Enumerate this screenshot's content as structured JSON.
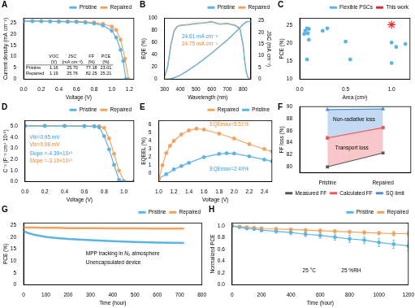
{
  "chart_data": [
    {
      "title": "A",
      "type": "line",
      "x_label": "Voltage (V)",
      "y_label": "Current density (mA cm⁻²)",
      "xlim": [
        0,
        1.25
      ],
      "xticks": [
        {
          "value": 0,
          "label": "0.0"
        },
        0.2,
        0.4,
        0.6,
        0.8,
        {
          "value": 1,
          "label": "1.0"
        },
        1.2
      ],
      "ylim": [
        0,
        27
      ],
      "yticks": [
        0,
        5,
        10,
        15,
        20,
        25
      ],
      "grid": false,
      "legend": "top",
      "series": [
        {
          "name": "Pristine",
          "color": "#5ab4e5",
          "marker": "circle",
          "line_style": "solid",
          "x": [
            0,
            0.1,
            0.2,
            0.3,
            0.4,
            0.5,
            0.6,
            0.7,
            0.8,
            0.9,
            1.0,
            1.05,
            1.1,
            1.13,
            1.16
          ],
          "values": [
            25.7,
            25.68,
            25.66,
            25.6,
            25.5,
            25.4,
            25.3,
            25.1,
            24.7,
            23.8,
            21.5,
            18.5,
            13,
            8,
            0
          ]
        },
        {
          "name": "Repaired",
          "color": "#f5a35c",
          "marker": "circle",
          "line_style": "solid",
          "x": [
            0,
            0.1,
            0.2,
            0.3,
            0.4,
            0.5,
            0.6,
            0.7,
            0.8,
            0.9,
            1.0,
            1.05,
            1.1,
            1.15,
            1.19
          ],
          "values": [
            25.76,
            25.75,
            25.74,
            25.72,
            25.7,
            25.65,
            25.6,
            25.4,
            25.1,
            24.5,
            23.3,
            21.8,
            17.5,
            9,
            0
          ]
        }
      ],
      "table": {
        "columns": [
          "VOC (V)",
          "JSC (mA cm⁻²)",
          "FF (%)",
          "PCE (%)"
        ],
        "rows": [
          {
            "name": "Pristine",
            "cells": [
              "1.16",
              "25.70",
              "77.18",
              "23.01"
            ]
          },
          {
            "name": "Repaired",
            "cells": [
              "1.19",
              "25.76",
              "82.25",
              "25.21"
            ]
          }
        ]
      }
    },
    {
      "title": "B",
      "type": "line",
      "x_label": "Wavelength (nm)",
      "y_label": "EQE (%)",
      "y2_label": "JSC (mA cm⁻²)",
      "xlim": [
        300,
        850
      ],
      "xticks": [
        300,
        400,
        500,
        600,
        700,
        800
      ],
      "ylim": [
        0,
        100
      ],
      "yticks": [
        0,
        20,
        40,
        60,
        80,
        100
      ],
      "y2lim": [
        0,
        26
      ],
      "y2ticks": [
        0,
        5,
        10,
        15,
        20,
        25
      ],
      "grid": false,
      "legend": "top",
      "x": [
        300,
        320,
        340,
        360,
        380,
        400,
        450,
        500,
        550,
        600,
        650,
        700,
        750,
        780,
        800,
        810,
        820,
        830,
        850
      ],
      "series": [
        {
          "name": "Pristine",
          "color": "#5ab4e5",
          "marker": "none",
          "line_style": "solid",
          "values": [
            3,
            20,
            55,
            78,
            86,
            88,
            89,
            91,
            92,
            94,
            90,
            91,
            88,
            82,
            55,
            30,
            12,
            3,
            0
          ]
        },
        {
          "name": "Repaired",
          "color": "#f5a35c",
          "marker": "none",
          "line_style": "solid",
          "values": [
            4,
            22,
            58,
            80,
            87,
            89,
            90,
            92,
            93,
            95,
            91,
            92,
            89,
            84,
            58,
            32,
            13,
            3,
            0
          ]
        },
        {
          "name": "Pristine",
          "color": "#5ab4e5",
          "marker": "none",
          "line_style": "solid",
          "axis": "y2",
          "values": [
            0,
            0.03,
            0.2,
            0.6,
            1.1,
            1.7,
            3.7,
            6.0,
            8.5,
            11.1,
            13.9,
            16.7,
            19.9,
            22.0,
            23.3,
            23.9,
            24.3,
            24.55,
            24.61
          ]
        },
        {
          "name": "Repaired",
          "color": "#f5a35c",
          "marker": "none",
          "line_style": "solid",
          "axis": "y2",
          "values": [
            0,
            0.03,
            0.21,
            0.62,
            1.12,
            1.73,
            3.75,
            6.05,
            8.6,
            11.2,
            14.0,
            16.8,
            20.0,
            22.1,
            23.4,
            24.0,
            24.4,
            24.7,
            24.75
          ]
        }
      ],
      "annotations": [
        {
          "text": "24.61 mA cm⁻²",
          "color": "#3a9ad5"
        },
        {
          "text": "24.75 mA cm⁻²",
          "color": "#e8893a"
        }
      ]
    },
    {
      "title": "C",
      "type": "scatter",
      "x_label": "Area (cm²)",
      "y_label": "PCE (%)",
      "xlim": [
        0,
        1.2
      ],
      "xticks": [
        {
          "value": 0,
          "label": "0.0"
        },
        0.5,
        {
          "value": 1,
          "label": "1.0"
        }
      ],
      "ylim": [
        10,
        27
      ],
      "yticks": [
        10,
        15,
        20,
        25
      ],
      "grid": false,
      "legend": "top",
      "series": [
        {
          "name": "Flexible PSCs",
          "color": "#5ab4e5",
          "marker": "circle",
          "line_style": "none",
          "x": [
            0.05,
            0.06,
            0.08,
            0.08,
            0.09,
            0.1,
            0.1,
            0.25,
            0.3,
            0.5,
            0.55,
            1.0,
            1.0,
            1.05,
            1.15
          ],
          "values": [
            22.6,
            23.5,
            15.5,
            24.2,
            22.8,
            24.0,
            21.0,
            23.5,
            24.2,
            20.5,
            15.5,
            20.2,
            14.5,
            19.0,
            19.8
          ]
        },
        {
          "name": "This work",
          "color": "#e8262c",
          "marker": "star",
          "line_style": "none",
          "x": [
            1.0
          ],
          "values": [
            25.21
          ]
        }
      ]
    },
    {
      "title": "D",
      "type": "line",
      "x_label": "Voltage (V)",
      "y_label": "C⁻² (F⁻² cm⁴ 10¹⁶)",
      "xlim": [
        0,
        1.1
      ],
      "xticks": [
        {
          "value": 0,
          "label": "0.0"
        },
        0.2,
        0.4,
        0.6,
        0.8,
        {
          "value": 1,
          "label": "1.0"
        }
      ],
      "ylim": [
        0,
        5.5
      ],
      "yticks": [
        {
          "value": 0,
          "label": "0.0"
        },
        {
          "value": 1,
          "label": "1.0"
        },
        {
          "value": 2,
          "label": "2.0"
        },
        {
          "value": 3,
          "label": "3.0"
        },
        {
          "value": 4,
          "label": "4.0"
        },
        {
          "value": 5,
          "label": "5.0"
        }
      ],
      "grid": false,
      "legend": "top",
      "x": [
        0,
        0.2,
        0.4,
        0.6,
        0.7,
        0.75,
        0.8,
        0.85,
        0.9,
        0.95,
        1.0,
        1.1
      ],
      "series": [
        {
          "name": "Pristine",
          "color": "#5ab4e5",
          "marker": "circle",
          "line_style": "solid",
          "values": [
            5.02,
            5.02,
            5.01,
            5.0,
            4.98,
            4.9,
            4.1,
            2.9,
            1.5,
            0.15,
            0.02,
            0.01
          ]
        },
        {
          "name": "Repaired",
          "color": "#f5a35c",
          "marker": "circle",
          "line_style": "solid",
          "values": [
            5.05,
            5.05,
            5.04,
            5.03,
            5.02,
            5.0,
            4.85,
            3.9,
            2.5,
            1.0,
            0.05,
            0.02
          ]
        }
      ],
      "annotations": [
        {
          "text": "Vbi=0.95 mV",
          "color": "#3a9ad5"
        },
        {
          "text": "Vbi=0.98 mV",
          "color": "#e8893a"
        },
        {
          "text": "Slope =-4.39×10¹⁵",
          "color": "#3a9ad5"
        },
        {
          "text": "Slope =-3.19×10¹⁵",
          "color": "#e8893a"
        }
      ]
    },
    {
      "title": "E",
      "type": "line",
      "x_label": "Voltage (V)",
      "y_label": "EQEEL (%)",
      "xlim": [
        1.0,
        2.5
      ],
      "xticks": [
        {
          "value": 1,
          "label": "1.0"
        },
        1.2,
        1.4,
        1.6,
        1.8,
        {
          "value": 2,
          "label": "2.0"
        },
        2.2,
        2.4
      ],
      "ylim": [
        -1,
        6.5
      ],
      "yticks": [
        0,
        1,
        2,
        3,
        4,
        5,
        6
      ],
      "grid": false,
      "legend": "top",
      "series": [
        {
          "name": "Repaired",
          "color": "#f5a35c",
          "marker": "circle",
          "line_style": "solid",
          "x": [
            1.0,
            1.05,
            1.1,
            1.15,
            1.2,
            1.3,
            1.4,
            1.5,
            1.6,
            1.8,
            2.0,
            2.2,
            2.4,
            2.5
          ],
          "values": [
            -0.8,
            1.0,
            2.5,
            3.4,
            4.0,
            4.8,
            5.3,
            5.51,
            5.4,
            4.9,
            4.3,
            3.6,
            3.0,
            2.7
          ]
        },
        {
          "name": "Pristine",
          "color": "#5ab4e5",
          "marker": "circle",
          "line_style": "solid",
          "x": [
            1.0,
            1.1,
            1.2,
            1.3,
            1.4,
            1.6,
            1.8,
            1.9,
            2.0,
            2.2,
            2.4,
            2.5
          ],
          "values": [
            -0.6,
            -0.1,
            0.5,
            0.9,
            1.3,
            2.0,
            2.4,
            2.49,
            2.45,
            2.1,
            1.7,
            1.5
          ]
        }
      ],
      "annotations": [
        {
          "text": "EQEmax=5.51%",
          "color": "#e8893a"
        },
        {
          "text": "EQEmax=2.49%",
          "color": "#3a9ad5"
        }
      ]
    },
    {
      "title": "F",
      "type": "area",
      "y_label": "FF loss (%)",
      "categories": [
        "Pristine",
        "Repaired"
      ],
      "ylim": [
        79,
        90
      ],
      "yticks": [
        80,
        82,
        84,
        86,
        88,
        90
      ],
      "grid": false,
      "legend": "bottom",
      "series": [
        {
          "name": "Measured FF",
          "color": "#555555",
          "marker": "square",
          "line_style": "solid",
          "values": [
            80.0,
            82.3
          ]
        },
        {
          "name": "Calculated FF",
          "color": "#e8585e",
          "marker": "circle",
          "line_style": "solid",
          "values": [
            84.8,
            86.5
          ]
        },
        {
          "name": "SQ limit",
          "color": "#4a8fd8",
          "marker": "triangle",
          "line_style": "solid",
          "values": [
            89.5,
            89.6
          ]
        }
      ],
      "annotations": [
        {
          "text": "Non-radiative loss",
          "color": "#000000"
        },
        {
          "text": "Transport loss",
          "color": "#000000"
        }
      ]
    },
    {
      "title": "G",
      "type": "line",
      "x_label": "Time (hour)",
      "y_label": "PCE (%)",
      "xlim": [
        0,
        800
      ],
      "xticks": [
        0,
        100,
        200,
        300,
        400,
        500,
        600,
        700,
        800
      ],
      "ylim": [
        0,
        26
      ],
      "yticks": [
        0,
        5,
        10,
        15,
        20,
        25
      ],
      "grid": false,
      "legend": "top",
      "x": [
        0,
        20,
        50,
        100,
        150,
        200,
        300,
        400,
        500,
        600,
        720
      ],
      "series": [
        {
          "name": "Pristine",
          "color": "#5ab4e5",
          "marker": "none",
          "line_style": "solid",
          "values": [
            22.6,
            21.8,
            21.0,
            20.2,
            19.7,
            19.3,
            18.8,
            18.4,
            18.0,
            17.8,
            17.6
          ]
        },
        {
          "name": "Repaired",
          "color": "#f5a35c",
          "marker": "none",
          "line_style": "solid",
          "values": [
            24.2,
            24.1,
            24.1,
            24.0,
            24.0,
            23.9,
            23.9,
            23.8,
            23.8,
            23.7,
            23.7
          ]
        }
      ],
      "annotations": [
        {
          "text": "MPP tracking in N₂ atmosphere",
          "color": "#000000"
        },
        {
          "text": "Unencapsulated device",
          "color": "#000000"
        }
      ]
    },
    {
      "title": "H",
      "type": "line",
      "x_label": "Time (hour)",
      "y_label": "Normalized PCE",
      "xlim": [
        0,
        1200
      ],
      "xticks": [
        0,
        200,
        400,
        600,
        800,
        1000,
        1200
      ],
      "ylim": [
        0,
        1.05
      ],
      "yticks": [
        {
          "value": 0,
          "label": "0.0"
        },
        0.2,
        0.4,
        0.6,
        0.8,
        {
          "value": 1,
          "label": "1.0"
        }
      ],
      "grid": false,
      "legend": "top",
      "x": [
        0,
        50,
        100,
        150,
        200,
        300,
        400,
        500,
        600,
        700,
        800,
        900,
        1000,
        1100,
        1200
      ],
      "series": [
        {
          "name": "Pristine",
          "color": "#5ab4e5",
          "marker": "circle",
          "line_style": "solid",
          "values": [
            1.0,
            0.98,
            0.96,
            0.95,
            0.93,
            0.91,
            0.89,
            0.86,
            0.84,
            0.81,
            0.78,
            0.76,
            0.72,
            0.69,
            0.66
          ],
          "errors": [
            0,
            0.01,
            0.02,
            0.02,
            0.03,
            0.03,
            0.04,
            0.04,
            0.05,
            0.05,
            0.06,
            0.06,
            0.07,
            0.07,
            0.08
          ]
        },
        {
          "name": "Repaired",
          "color": "#f5a35c",
          "marker": "circle",
          "line_style": "solid",
          "values": [
            1.0,
            0.99,
            0.98,
            0.97,
            0.96,
            0.95,
            0.94,
            0.93,
            0.92,
            0.91,
            0.9,
            0.89,
            0.88,
            0.87,
            0.87
          ],
          "errors": [
            0,
            0.01,
            0.01,
            0.01,
            0.02,
            0.02,
            0.02,
            0.02,
            0.03,
            0.03,
            0.03,
            0.03,
            0.03,
            0.04,
            0.04
          ]
        }
      ],
      "annotations": [
        {
          "text": "25 °C",
          "color": "#000000"
        },
        {
          "text": "25 %RH",
          "color": "#000000"
        }
      ]
    }
  ]
}
